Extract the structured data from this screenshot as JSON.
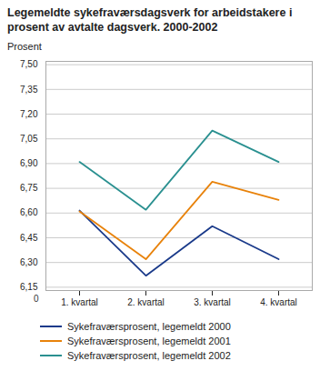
{
  "chart_data": {
    "type": "line",
    "title": "Legemeldte sykefraværsdagsverk for arbeidstakere i\nprosent av avtalte dagsverk. 2000-2002",
    "y_label": "Prosent",
    "categories": [
      "1. kvartal",
      "2. kvartal",
      "3. kvartal",
      "4. kvartal"
    ],
    "series": [
      {
        "name": "Sykefraværsprosent, legemeldt 2000",
        "color": "#1a3a8a",
        "values": [
          6.615,
          6.22,
          6.52,
          6.32
        ]
      },
      {
        "name": "Sykefraværsprosent, legemeldt 2001",
        "color": "#e8820a",
        "values": [
          6.61,
          6.32,
          6.79,
          6.68
        ]
      },
      {
        "name": "Sykefraværsprosent, legemeldt 2002",
        "color": "#2a9090",
        "values": [
          6.91,
          6.62,
          7.1,
          6.91
        ]
      }
    ],
    "ylim": [
      6.13,
      7.52
    ],
    "yticks": [
      {
        "value": 7.5,
        "label": "7,50"
      },
      {
        "value": 7.35,
        "label": "7,35"
      },
      {
        "value": 7.2,
        "label": "7,20"
      },
      {
        "value": 7.05,
        "label": "7,05"
      },
      {
        "value": 6.9,
        "label": "6,90"
      },
      {
        "value": 6.75,
        "label": "6,75"
      },
      {
        "value": 6.6,
        "label": "6,60"
      },
      {
        "value": 6.45,
        "label": "6,45"
      },
      {
        "value": 6.3,
        "label": "6,30"
      },
      {
        "value": 6.15,
        "label": "6,15"
      }
    ],
    "annotations": [
      "0"
    ],
    "grid": true,
    "legend": "bottom"
  }
}
